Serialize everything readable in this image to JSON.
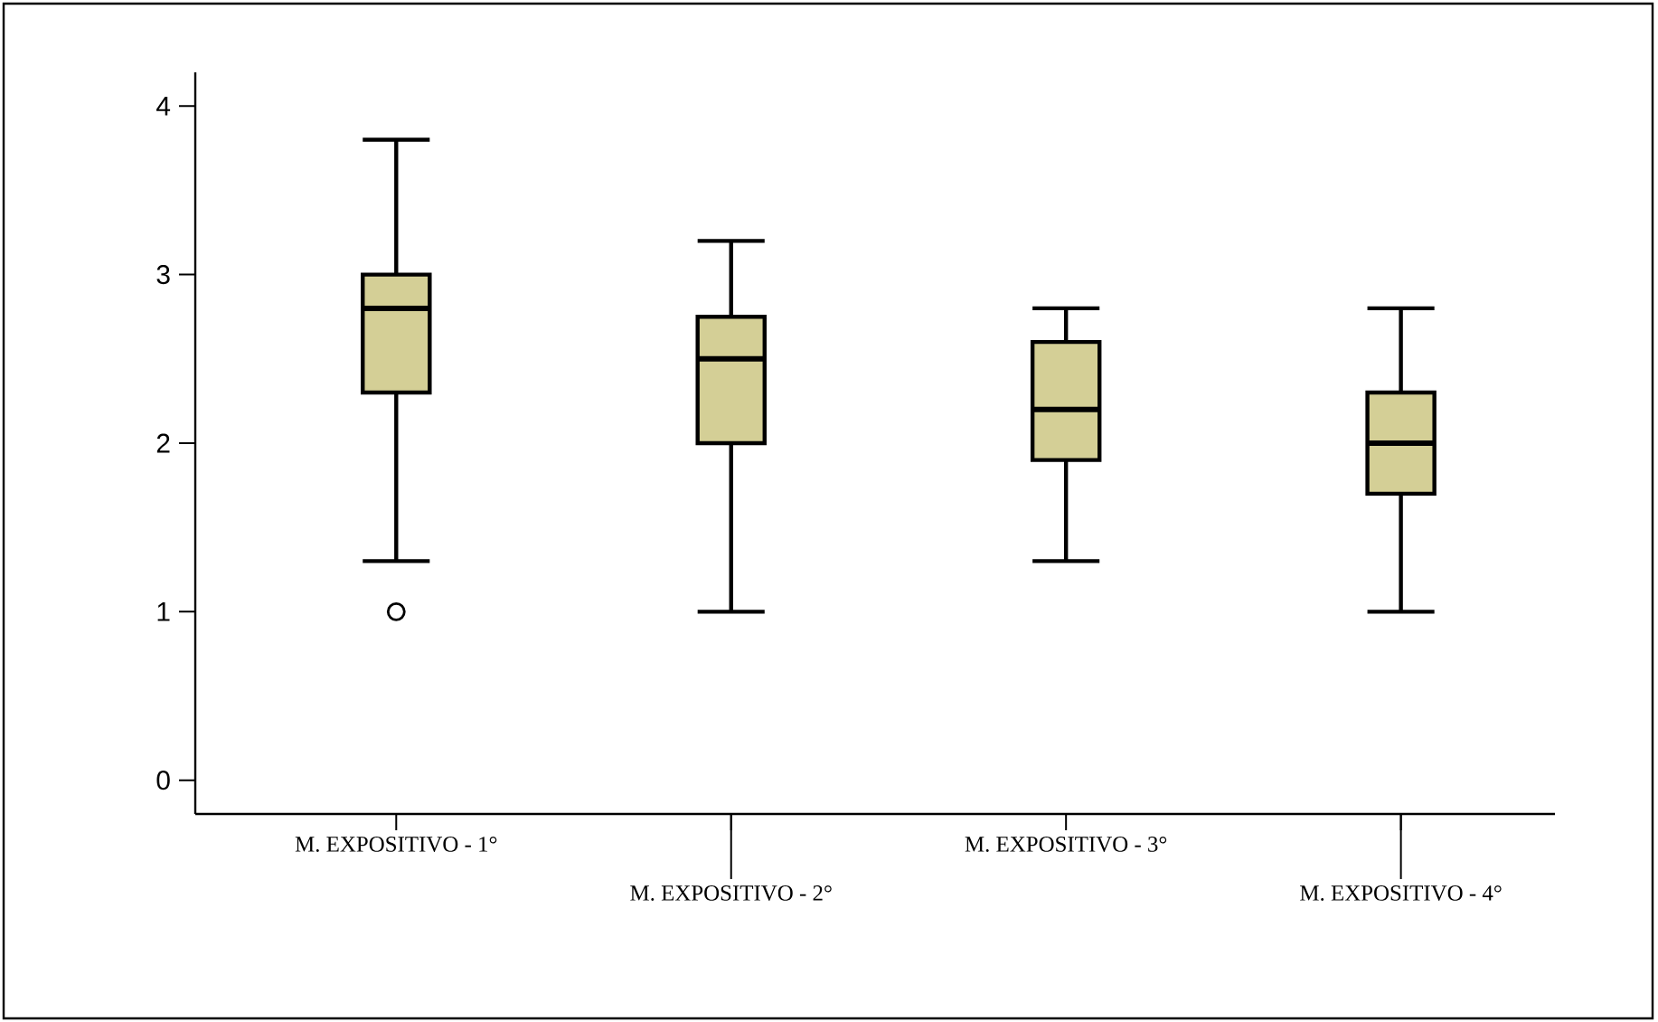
{
  "chart_data": {
    "type": "box",
    "categories": [
      "M. EXPOSITIVO - 1°",
      "M. EXPOSITIVO - 2°",
      "M. EXPOSITIVO - 3°",
      "M. EXPOSITIVO - 4°"
    ],
    "boxes": [
      {
        "low": 1.3,
        "q1": 2.3,
        "median": 2.8,
        "q3": 3.0,
        "high": 3.8,
        "outliers": [
          1.0
        ]
      },
      {
        "low": 1.0,
        "q1": 2.0,
        "median": 2.5,
        "q3": 2.75,
        "high": 3.2
      },
      {
        "low": 1.3,
        "q1": 1.9,
        "median": 2.2,
        "q3": 2.6,
        "high": 2.8
      },
      {
        "low": 1.0,
        "q1": 1.7,
        "median": 2.0,
        "q3": 2.3,
        "high": 2.8
      }
    ],
    "color": "#d4cf96",
    "marker": "circle",
    "ylim": [
      -0.2,
      4.2
    ],
    "yticks": [
      0,
      1,
      2,
      3,
      4
    ]
  }
}
